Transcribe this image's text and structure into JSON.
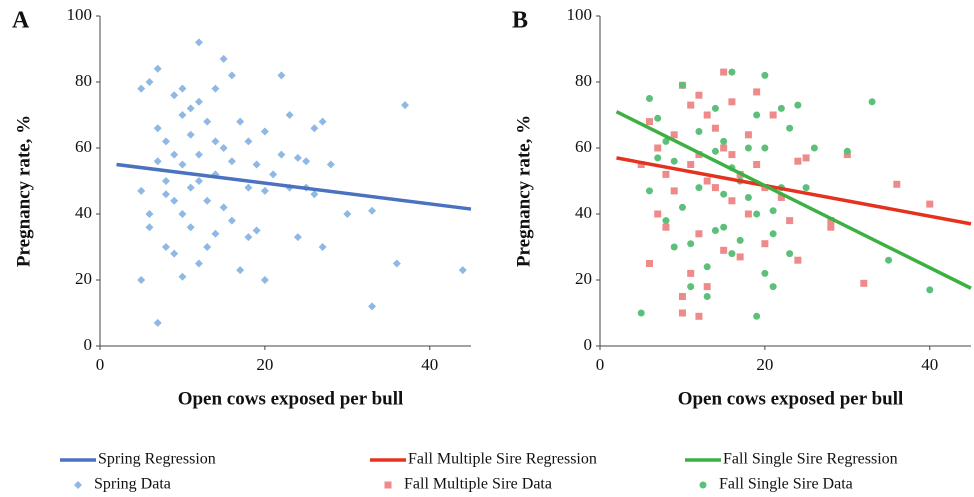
{
  "chart_data": [
    {
      "type": "scatter",
      "panel_label": "A",
      "xlabel": "Open cows exposed per bull",
      "ylabel": "Pregnancy rate, %",
      "xlim": [
        0,
        45
      ],
      "xticks": [
        0,
        20,
        40
      ],
      "ylim": [
        0,
        100
      ],
      "yticks": [
        0,
        20,
        40,
        60,
        80,
        100
      ],
      "series": [
        {
          "name": "Spring Regression",
          "type": "line",
          "color": "#4a72c0",
          "x": [
            2,
            45
          ],
          "values": [
            55,
            41.5
          ]
        },
        {
          "name": "Spring Data",
          "type": "scatter",
          "marker": "diamond",
          "color": "#8fb8e4",
          "x": [
            5,
            5,
            5,
            6,
            6,
            6,
            7,
            7,
            7,
            7,
            8,
            8,
            8,
            8,
            9,
            9,
            9,
            9,
            10,
            10,
            10,
            10,
            10,
            11,
            11,
            11,
            11,
            12,
            12,
            12,
            12,
            12,
            13,
            13,
            13,
            14,
            14,
            14,
            14,
            15,
            15,
            15,
            16,
            16,
            16,
            17,
            17,
            18,
            18,
            19,
            19,
            20,
            20,
            20,
            22,
            22,
            23,
            24,
            25,
            26,
            27,
            27,
            28,
            30,
            33,
            33,
            36,
            37,
            44,
            23,
            21,
            24,
            26,
            25,
            18
          ],
          "values": [
            78,
            20,
            47,
            80,
            40,
            36,
            84,
            66,
            7,
            56,
            62,
            50,
            46,
            30,
            76,
            58,
            44,
            28,
            78,
            70,
            55,
            40,
            21,
            72,
            64,
            48,
            36,
            92,
            74,
            58,
            50,
            25,
            68,
            44,
            30,
            78,
            62,
            52,
            34,
            87,
            60,
            42,
            82,
            56,
            38,
            68,
            23,
            62,
            48,
            55,
            35,
            65,
            47,
            20,
            82,
            58,
            70,
            33,
            56,
            46,
            68,
            30,
            55,
            40,
            41,
            12,
            25,
            73,
            23,
            48,
            52,
            57,
            66,
            48,
            33
          ]
        }
      ]
    },
    {
      "type": "scatter",
      "panel_label": "B",
      "xlabel": "Open cows exposed per bull",
      "ylabel": "Pregnancy rate, %",
      "xlim": [
        0,
        45
      ],
      "xticks": [
        0,
        20,
        40
      ],
      "ylim": [
        0,
        100
      ],
      "yticks": [
        0,
        20,
        40,
        60,
        80,
        100
      ],
      "series": [
        {
          "name": "Fall Multiple Sire Regression",
          "type": "line",
          "color": "#e5321e",
          "x": [
            2,
            45
          ],
          "values": [
            57,
            37
          ]
        },
        {
          "name": "Fall Single Sire Regression",
          "type": "line",
          "color": "#3cb043",
          "x": [
            2,
            45
          ],
          "values": [
            71,
            17.5
          ]
        },
        {
          "name": "Fall Multiple Sire Data",
          "type": "scatter",
          "marker": "square",
          "color": "#ef8a8a",
          "x": [
            5,
            6,
            6,
            7,
            7,
            8,
            8,
            9,
            9,
            10,
            10,
            10,
            11,
            11,
            11,
            12,
            12,
            12,
            12,
            13,
            13,
            13,
            14,
            14,
            15,
            15,
            15,
            16,
            16,
            17,
            17,
            18,
            18,
            19,
            19,
            20,
            20,
            21,
            22,
            23,
            24,
            24,
            25,
            28,
            28,
            30,
            32,
            36,
            40,
            16
          ],
          "values": [
            55,
            68,
            25,
            60,
            40,
            52,
            36,
            64,
            47,
            79,
            15,
            10,
            73,
            55,
            22,
            76,
            58,
            34,
            9,
            70,
            50,
            18,
            66,
            48,
            83,
            60,
            29,
            58,
            44,
            52,
            27,
            64,
            40,
            77,
            55,
            48,
            31,
            70,
            45,
            38,
            56,
            26,
            57,
            38,
            36,
            58,
            19,
            49,
            43,
            74
          ]
        },
        {
          "name": "Fall Single Sire Data",
          "type": "scatter",
          "marker": "circle",
          "color": "#5cc07a",
          "x": [
            5,
            6,
            6,
            7,
            7,
            8,
            8,
            9,
            9,
            10,
            10,
            11,
            11,
            12,
            12,
            13,
            13,
            14,
            14,
            14,
            15,
            15,
            15,
            16,
            16,
            16,
            17,
            17,
            18,
            18,
            19,
            19,
            19,
            20,
            20,
            20,
            21,
            21,
            22,
            22,
            23,
            23,
            24,
            25,
            26,
            30,
            33,
            35,
            40,
            21
          ],
          "values": [
            10,
            75,
            47,
            69,
            57,
            62,
            38,
            56,
            30,
            79,
            42,
            31,
            18,
            65,
            48,
            24,
            15,
            72,
            59,
            35,
            62,
            46,
            36,
            83,
            54,
            28,
            50,
            32,
            60,
            45,
            70,
            9,
            40,
            82,
            60,
            22,
            34,
            18,
            72,
            48,
            66,
            28,
            73,
            48,
            60,
            59,
            74,
            26,
            17,
            41
          ]
        }
      ]
    }
  ]
}
